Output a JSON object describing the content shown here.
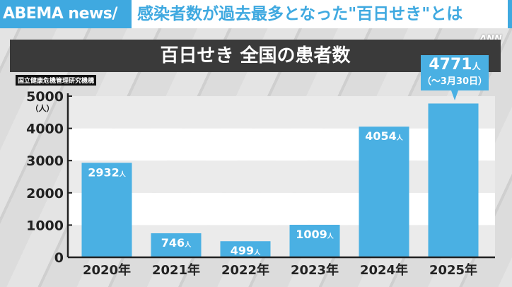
{
  "header": {
    "brand": "ABEMA news/",
    "headline": "感染者数が過去最多となった\"百日せき\"とは",
    "watermark": "ANN"
  },
  "source": "国立健康危機管理研究機構",
  "colors": {
    "bar": "#4ab0e3",
    "brand": "#3fa9e0",
    "title_bg": "#3a3a3a"
  },
  "callout": {
    "value": "4771",
    "unit": "人",
    "note": "（～3月30日）"
  },
  "chart_data": {
    "type": "bar",
    "title": "百日せき 全国の患者数",
    "ylabel": "（人）",
    "categories": [
      "2020年",
      "2021年",
      "2022年",
      "2023年",
      "2024年",
      "2025年"
    ],
    "values": [
      2932,
      746,
      499,
      1009,
      4054,
      4771
    ],
    "value_labels": [
      "2932",
      "746",
      "499",
      "1009",
      "4054",
      ""
    ],
    "value_unit": "人",
    "yticks": [
      "0",
      "1000",
      "2000",
      "3000",
      "4000",
      "5000"
    ],
    "ylim": [
      0,
      5000
    ],
    "grid": "alternating bands",
    "legend": "none"
  }
}
